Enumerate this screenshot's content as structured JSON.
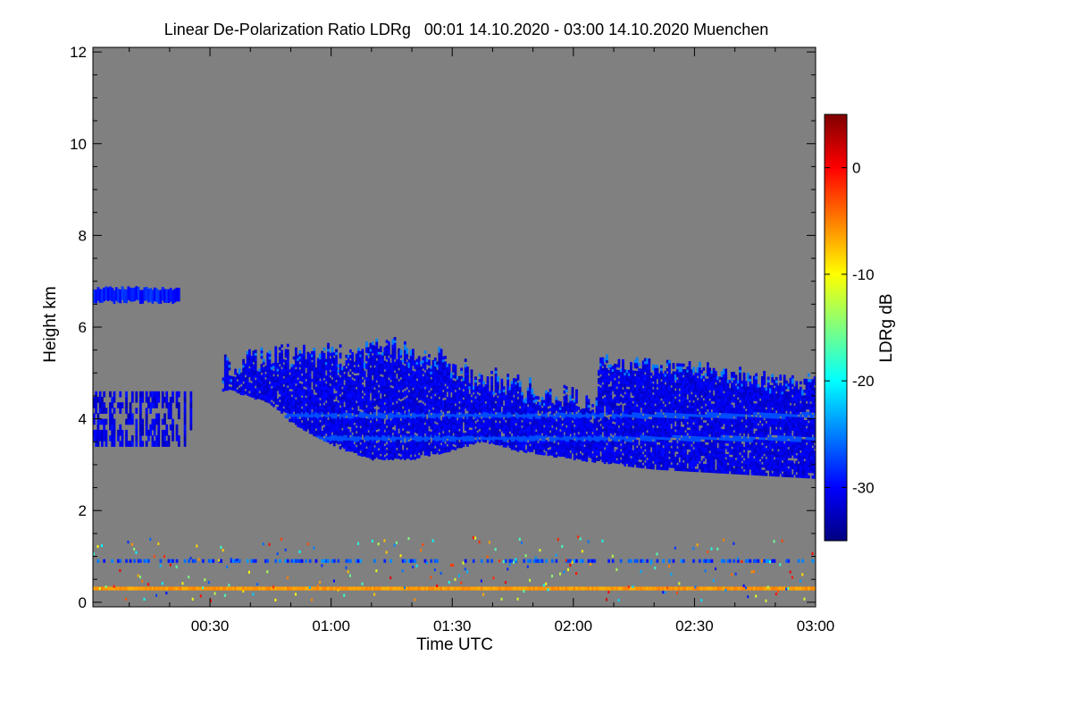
{
  "chart_data": {
    "type": "heatmap",
    "title": "Linear De-Polarization Ratio LDRg   00:01 14.10.2020 - 03:00 14.10.2020 Muenchen",
    "xlabel": "Time UTC",
    "ylabel": "Height km",
    "x_ticks": [
      "00:30",
      "01:00",
      "01:30",
      "02:00",
      "02:30",
      "03:00"
    ],
    "x_tick_values": [
      30,
      60,
      90,
      120,
      150,
      180
    ],
    "xlim": [
      1,
      180
    ],
    "y_ticks": [
      "0",
      "2",
      "4",
      "6",
      "8",
      "10",
      "12"
    ],
    "y_tick_values": [
      0,
      2,
      4,
      6,
      8,
      10,
      12
    ],
    "ylim": [
      -0.1,
      12.1
    ],
    "colorbar": {
      "label": "LDRg dB",
      "ticks": [
        "0",
        "-10",
        "-20",
        "-30"
      ],
      "tick_values": [
        0,
        -10,
        -20,
        -30
      ],
      "range": [
        -35,
        5
      ],
      "colormap": [
        "#00007f",
        "#0000ff",
        "#007fff",
        "#00ffff",
        "#7fff7f",
        "#ffff00",
        "#ff7f00",
        "#ff0000",
        "#7f0000"
      ]
    },
    "no_data_color": "#808080",
    "features": {
      "main_cloud_top_km": [
        [
          35,
          5.4
        ],
        [
          45,
          5.6
        ],
        [
          55,
          5.6
        ],
        [
          65,
          5.7
        ],
        [
          75,
          5.8
        ],
        [
          85,
          5.6
        ],
        [
          95,
          5.2
        ],
        [
          105,
          5.0
        ],
        [
          115,
          4.8
        ],
        [
          125,
          4.6
        ],
        [
          130,
          4.4
        ]
      ],
      "main_cloud_base_km": [
        [
          35,
          4.6
        ],
        [
          45,
          4.3
        ],
        [
          50,
          3.9
        ],
        [
          60,
          3.4
        ],
        [
          70,
          3.1
        ],
        [
          80,
          3.1
        ],
        [
          90,
          3.3
        ],
        [
          97,
          3.5
        ],
        [
          105,
          3.3
        ],
        [
          120,
          3.1
        ],
        [
          140,
          2.9
        ],
        [
          160,
          2.8
        ],
        [
          180,
          2.7
        ]
      ],
      "second_cloud_top_km": [
        [
          127,
          5.4
        ],
        [
          140,
          5.3
        ],
        [
          150,
          5.3
        ],
        [
          165,
          5.0
        ],
        [
          175,
          5.0
        ],
        [
          180,
          4.9
        ]
      ],
      "early_layer_km": {
        "t_start": 1,
        "t_end": 25,
        "bottom": 3.4,
        "top": 4.6
      },
      "high_thin_layer_km": {
        "t_start": 1,
        "t_end": 22,
        "bottom": 6.6,
        "top": 6.9
      },
      "low_layer_km": {
        "height": 0.9,
        "value_db": -27
      },
      "ground_layer_km": {
        "height": 0.3,
        "value_db": -6
      },
      "typical_cloud_ldr_db": -31
    }
  }
}
